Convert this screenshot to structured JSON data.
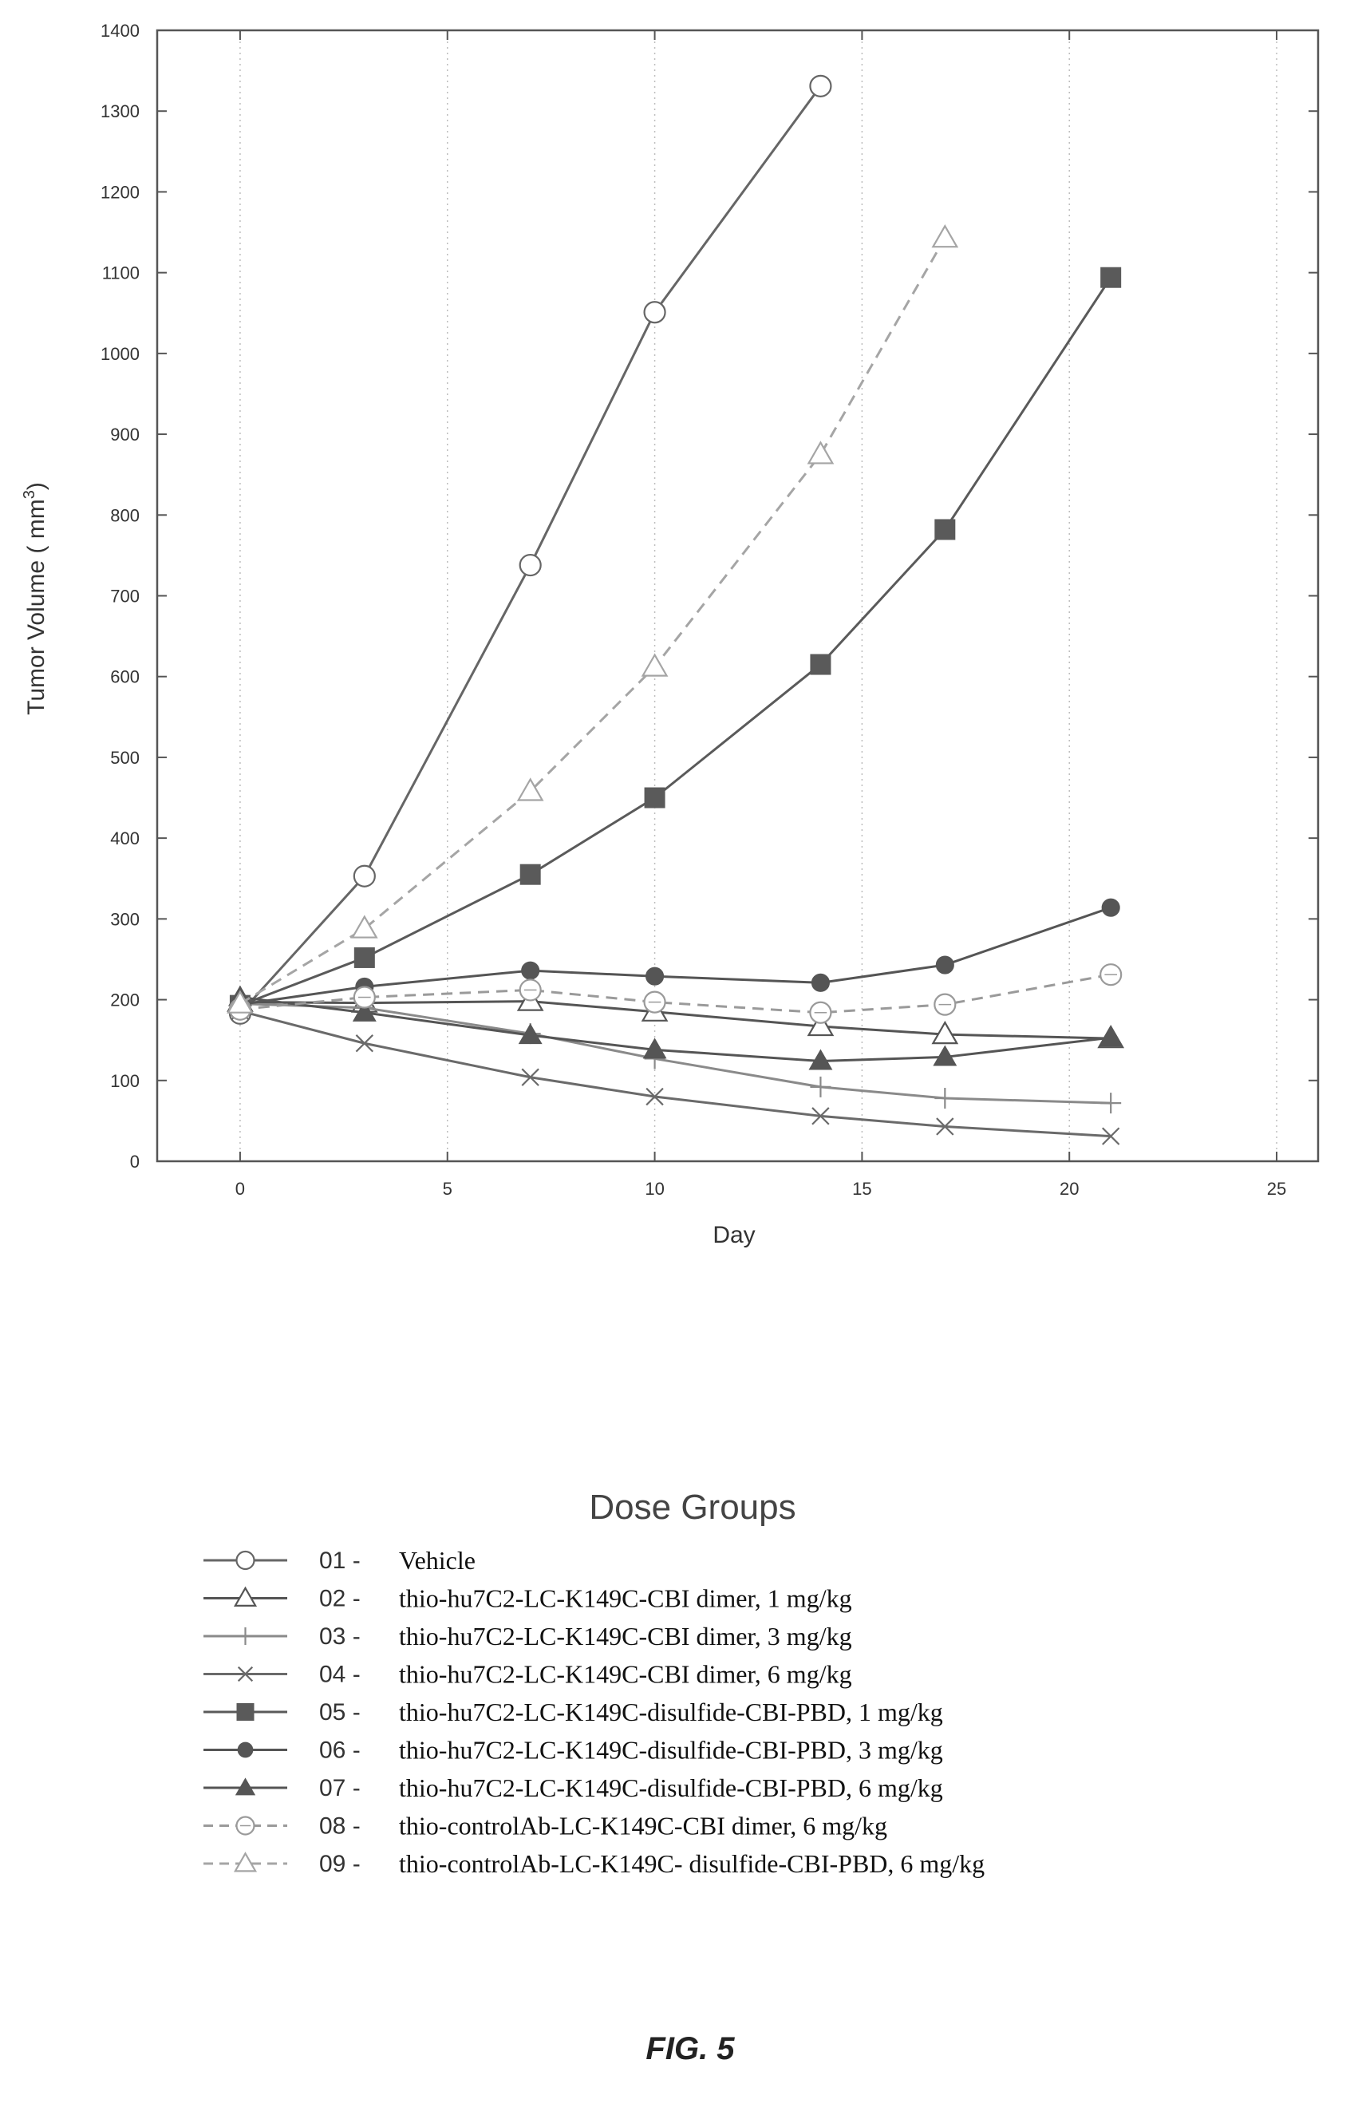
{
  "chart_data": {
    "type": "line",
    "title": "",
    "xlabel": "Day",
    "ylabel": "Tumor Volume ( mm",
    "ylabel_sup": "3",
    "ylabel_close": ")",
    "xlim": [
      -2,
      26
    ],
    "ylim": [
      0,
      1400
    ],
    "x_ticks": [
      0,
      5,
      10,
      15,
      20,
      25
    ],
    "y_ticks": [
      0,
      100,
      200,
      300,
      400,
      500,
      600,
      700,
      800,
      900,
      1000,
      1100,
      1200,
      1300,
      1400
    ],
    "grid": "vertical dotted",
    "legend_title": "Dose Groups",
    "legend_position": "bottom",
    "series": [
      {
        "code": "01 -",
        "name": "Vehicle",
        "marker": "circle-open",
        "dashed": false,
        "color": "#666666",
        "x": [
          0,
          3,
          7,
          10,
          14
        ],
        "y": [
          183,
          353,
          738,
          1051,
          1331
        ]
      },
      {
        "code": "02 -",
        "name": "thio-hu7C2-LC-K149C-CBI dimer, 1 mg/kg",
        "marker": "triangle-open",
        "dashed": false,
        "color": "#555555",
        "x": [
          0,
          3,
          7,
          10,
          14,
          17,
          21
        ],
        "y": [
          197,
          196,
          198,
          185,
          167,
          157,
          152
        ]
      },
      {
        "code": "03 -",
        "name": "thio-hu7C2-LC-K149C-CBI dimer, 3 mg/kg",
        "marker": "plus",
        "dashed": false,
        "color": "#8a8a8a",
        "x": [
          0,
          3,
          7,
          10,
          14,
          17,
          21
        ],
        "y": [
          195,
          190,
          158,
          127,
          92,
          78,
          72
        ]
      },
      {
        "code": "04 -",
        "name": "thio-hu7C2-LC-K149C-CBI dimer, 6 mg/kg",
        "marker": "x",
        "dashed": false,
        "color": "#6a6a6a",
        "x": [
          0,
          3,
          7,
          10,
          14,
          17,
          21
        ],
        "y": [
          186,
          146,
          104,
          80,
          56,
          43,
          31
        ]
      },
      {
        "code": "05 -",
        "name": "thio-hu7C2-LC-K149C-disulfide-CBI-PBD, 1 mg/kg",
        "marker": "square-filled",
        "dashed": false,
        "color": "#5a5a5a",
        "x": [
          0,
          3,
          7,
          10,
          14,
          17,
          21
        ],
        "y": [
          193,
          252,
          355,
          450,
          615,
          782,
          1094
        ]
      },
      {
        "code": "06 -",
        "name": "thio-hu7C2-LC-K149C-disulfide-CBI-PBD, 3 mg/kg",
        "marker": "circle-filled",
        "dashed": false,
        "color": "#555555",
        "x": [
          0,
          3,
          7,
          10,
          14,
          17,
          21
        ],
        "y": [
          194,
          216,
          236,
          229,
          221,
          243,
          314
        ]
      },
      {
        "code": "07 -",
        "name": "thio-hu7C2-LC-K149C-disulfide-CBI-PBD, 6 mg/kg",
        "marker": "triangle-filled",
        "dashed": false,
        "color": "#555555",
        "x": [
          0,
          3,
          7,
          10,
          14,
          17,
          21
        ],
        "y": [
          203,
          184,
          156,
          138,
          124,
          129,
          153
        ]
      },
      {
        "code": "08 -",
        "name": "thio-controlAb-LC-K149C-CBI dimer, 6 mg/kg",
        "marker": "circle-dot-open",
        "dashed": true,
        "color": "#9a9a9a",
        "x": [
          0,
          3,
          7,
          10,
          14,
          17,
          21
        ],
        "y": [
          188,
          203,
          212,
          197,
          184,
          194,
          231
        ]
      },
      {
        "code": "09 -",
        "name": "thio-controlAb-LC-K149C- disulfide-CBI-PBD, 6 mg/kg",
        "marker": "triangle-open",
        "dashed": true,
        "color": "#a5a5a5",
        "x": [
          0,
          3,
          7,
          10,
          14,
          17
        ],
        "y": [
          195,
          288,
          458,
          612,
          875,
          1143
        ]
      }
    ]
  },
  "figure_caption": "FIG. 5"
}
